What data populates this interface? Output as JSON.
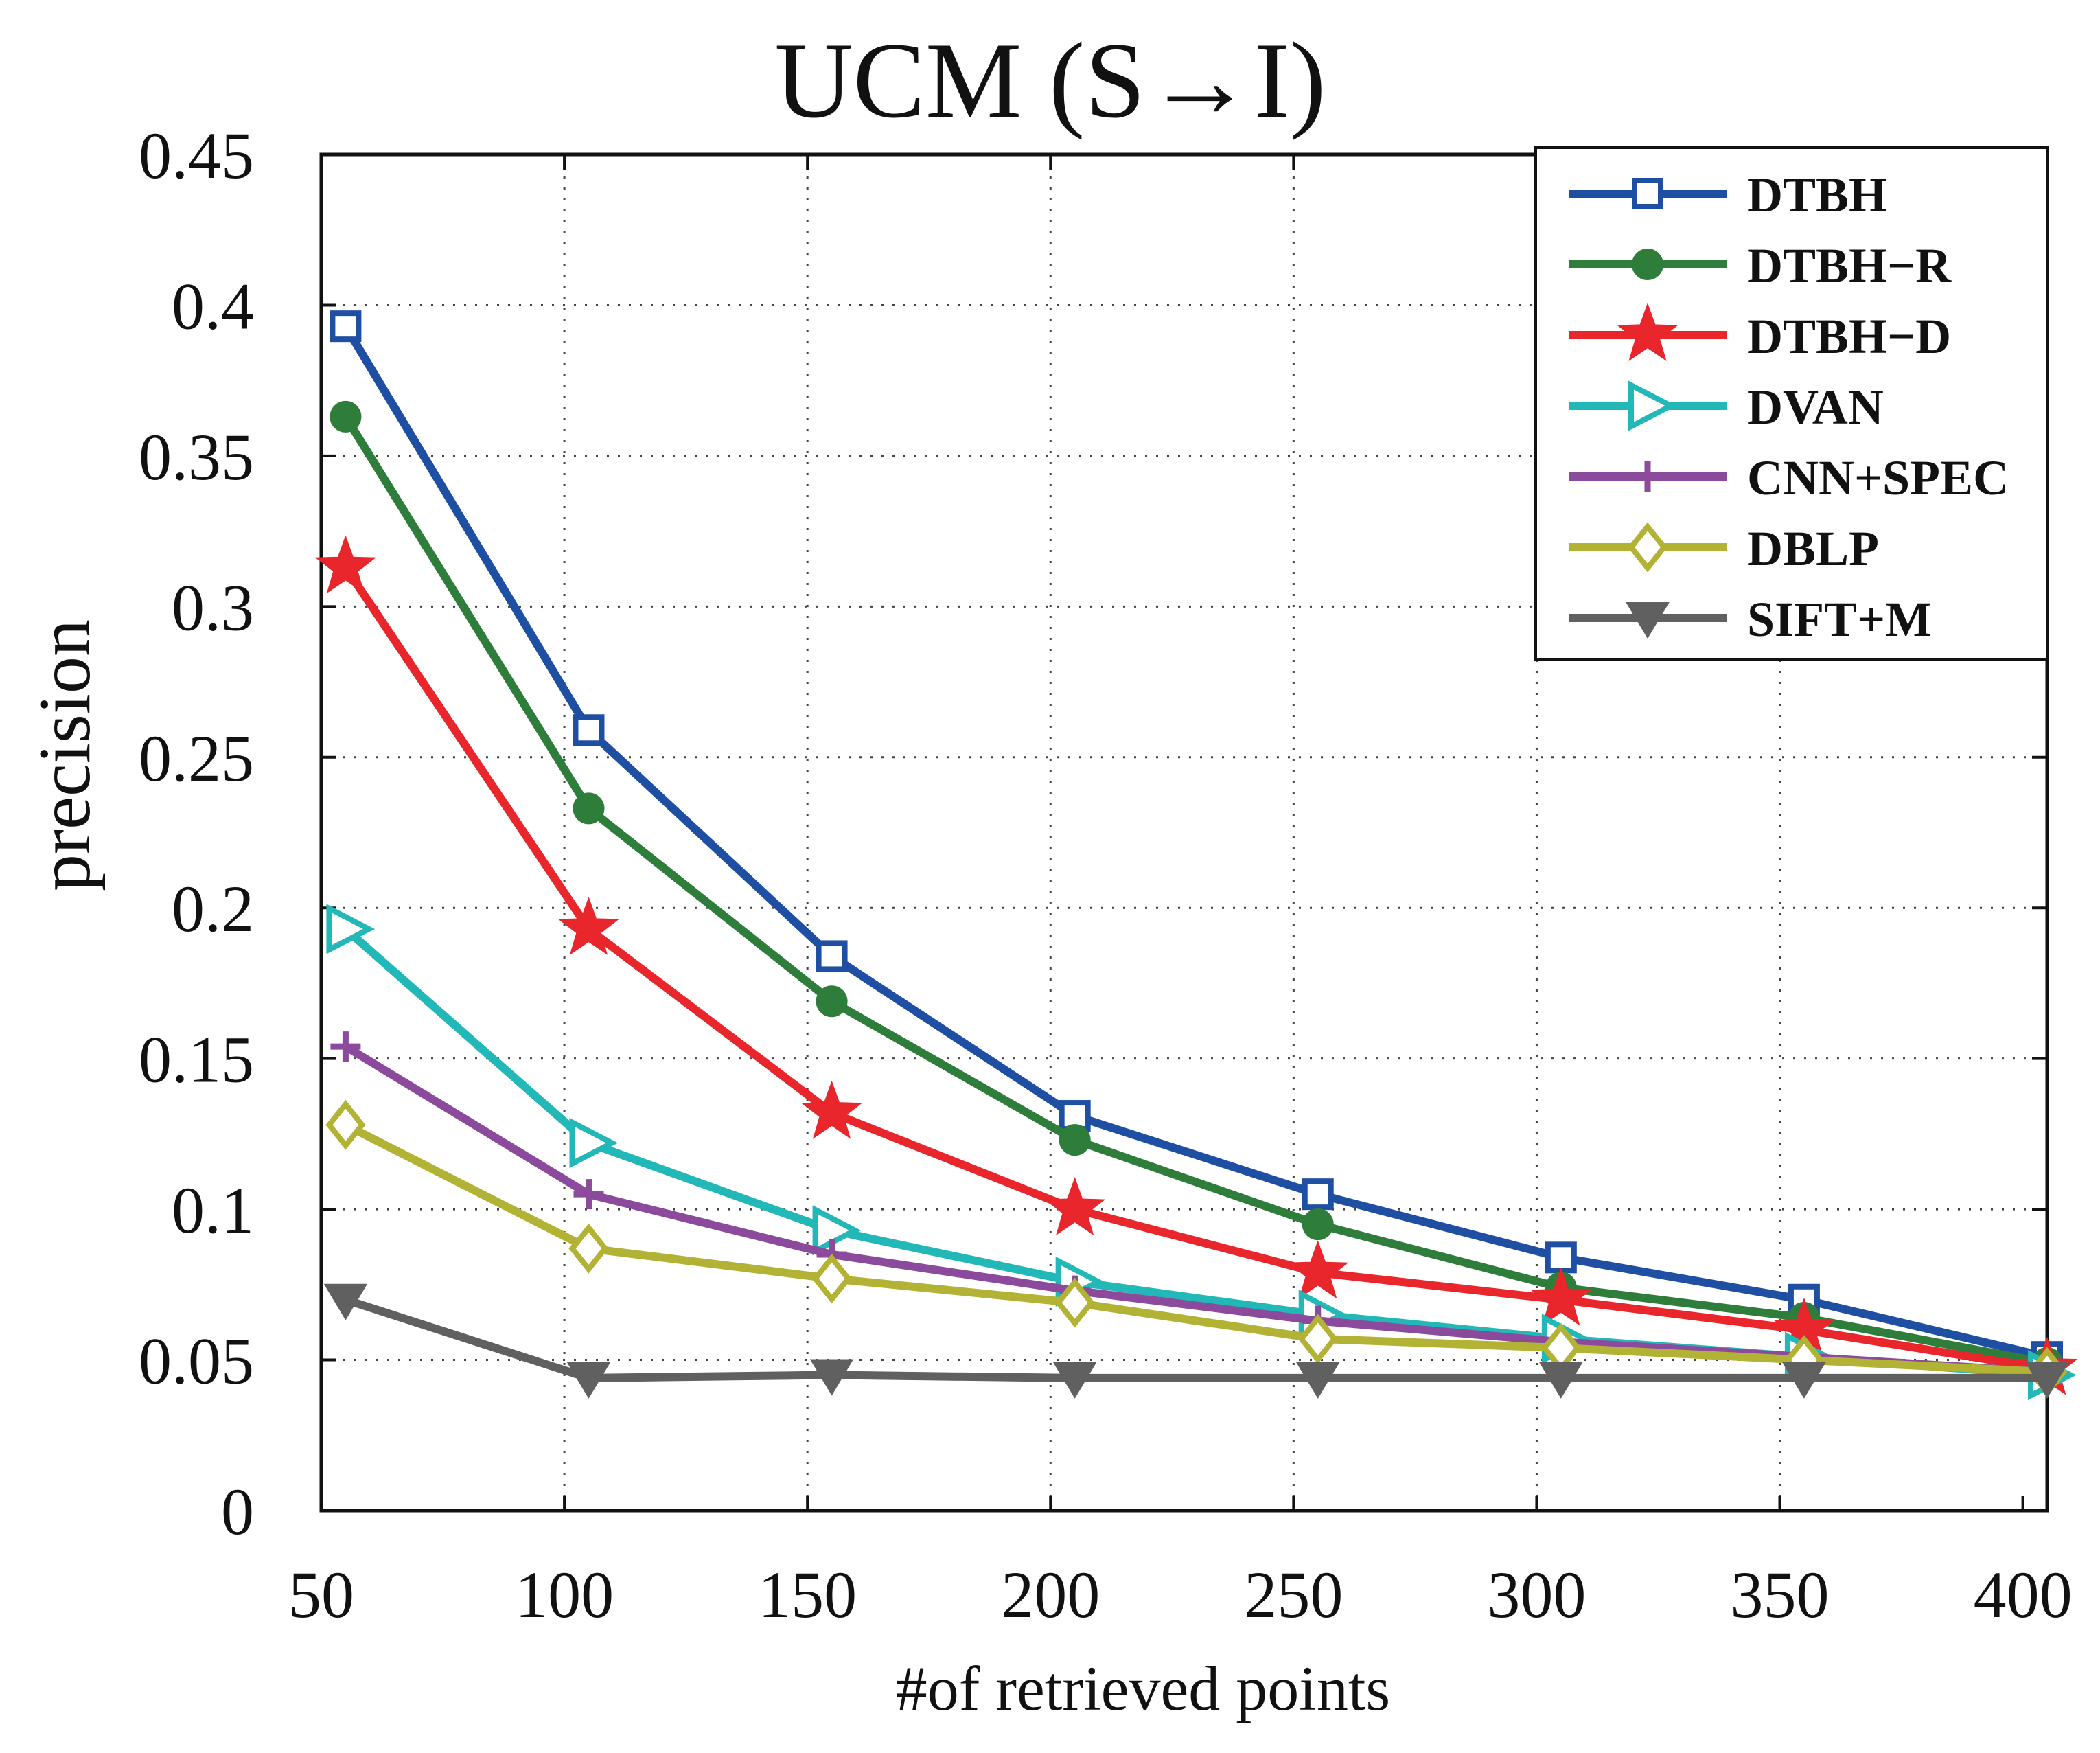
{
  "chart_data": {
    "type": "line",
    "title": "UCM (S→I)",
    "xlabel": "#of retrieved points",
    "ylabel": "precision",
    "x": [
      55,
      105,
      155,
      205,
      255,
      305,
      355,
      405
    ],
    "xlim": [
      50,
      405
    ],
    "ylim": [
      0,
      0.45
    ],
    "xticks": [
      50,
      100,
      150,
      200,
      250,
      300,
      350,
      400
    ],
    "xtick_labels": [
      "50",
      "100",
      "150",
      "200",
      "250",
      "300",
      "350",
      "400"
    ],
    "yticks": [
      0,
      0.05,
      0.1,
      0.15,
      0.2,
      0.25,
      0.3,
      0.35,
      0.4,
      0.45
    ],
    "ytick_labels": [
      "0",
      "0.05",
      "0.1",
      "0.15",
      "0.2",
      "0.25",
      "0.3",
      "0.35",
      "0.4",
      "0.45"
    ],
    "grid": true,
    "legend_position": "top-right",
    "series": [
      {
        "name": "DTBH",
        "color": "#1f4fa3",
        "marker": "square-open",
        "values": [
          0.393,
          0.259,
          0.184,
          0.131,
          0.105,
          0.084,
          0.07,
          0.051
        ]
      },
      {
        "name": "DTBH−R",
        "color": "#2e7d3b",
        "marker": "circle-filled",
        "values": [
          0.363,
          0.233,
          0.169,
          0.123,
          0.095,
          0.074,
          0.064,
          0.049
        ]
      },
      {
        "name": "DTBH−D",
        "color": "#e8262b",
        "marker": "star",
        "values": [
          0.313,
          0.193,
          0.132,
          0.1,
          0.079,
          0.07,
          0.06,
          0.047
        ]
      },
      {
        "name": "DVAN",
        "color": "#23b8b8",
        "marker": "triangle-right",
        "values": [
          0.193,
          0.122,
          0.093,
          0.076,
          0.065,
          0.057,
          0.051,
          0.045
        ]
      },
      {
        "name": "CNN+SPEC",
        "color": "#8b4a9c",
        "marker": "plus",
        "values": [
          0.154,
          0.105,
          0.085,
          0.073,
          0.063,
          0.056,
          0.051,
          0.046
        ]
      },
      {
        "name": "DBLP",
        "color": "#b2b234",
        "marker": "diamond-open",
        "values": [
          0.128,
          0.087,
          0.077,
          0.069,
          0.057,
          0.054,
          0.05,
          0.046
        ]
      },
      {
        "name": "SIFT+M",
        "color": "#606060",
        "marker": "triangle-down",
        "values": [
          0.07,
          0.044,
          0.045,
          0.044,
          0.044,
          0.044,
          0.044,
          0.044
        ]
      }
    ]
  }
}
